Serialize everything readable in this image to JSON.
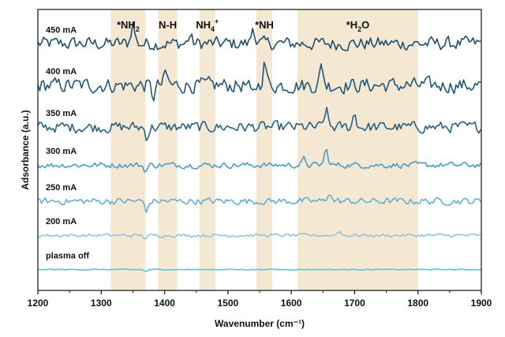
{
  "chart_data": {
    "type": "line",
    "title": "",
    "xlabel": "Wavenumber (cm⁻¹)",
    "ylabel": "Adsorbance (a.u.)",
    "xlim": [
      1200,
      1900
    ],
    "xticks": [
      1200,
      1300,
      1400,
      1500,
      1600,
      1700,
      1800,
      1900
    ],
    "y_ticks_shown": false,
    "bands": [
      {
        "label": "*NH",
        "sub": "2",
        "sup": "",
        "tail": "",
        "x_range": [
          1315,
          1370
        ]
      },
      {
        "label": "N-H",
        "sub": "",
        "sup": "",
        "tail": "",
        "x_range": [
          1390,
          1420
        ]
      },
      {
        "label": "NH",
        "sub": "4",
        "sup": "+",
        "tail": "",
        "x_range": [
          1455,
          1480
        ]
      },
      {
        "label": "*NH",
        "sub": "",
        "sup": "",
        "tail": "",
        "x_range": [
          1545,
          1570
        ]
      },
      {
        "label": "*H",
        "sub": "2",
        "sup": "",
        "tail": "O",
        "x_range": [
          1610,
          1800
        ]
      }
    ],
    "band_color": "#f5e8d3",
    "series": [
      {
        "name": "450 mA",
        "color": "#1f4e6e",
        "offset": 7.0,
        "noise": 0.16,
        "peaks": [
          {
            "x": 1350,
            "h": 0.55
          },
          {
            "x": 1540,
            "h": 0.45
          },
          {
            "x": 1440,
            "h": 0.2
          }
        ]
      },
      {
        "name": "400 mA",
        "color": "#22577a",
        "offset": 5.9,
        "noise": 0.18,
        "peaks": [
          {
            "x": 1558,
            "h": 0.6
          },
          {
            "x": 1648,
            "h": 0.5
          },
          {
            "x": 1402,
            "h": 0.3
          },
          {
            "x": 1382,
            "h": -0.3
          },
          {
            "x": 1538,
            "h": -0.3
          }
        ]
      },
      {
        "name": "350 mA",
        "color": "#285f82",
        "offset": 4.8,
        "noise": 0.13,
        "peaks": [
          {
            "x": 1655,
            "h": 0.45
          },
          {
            "x": 1700,
            "h": 0.35
          },
          {
            "x": 1372,
            "h": -0.25
          }
        ]
      },
      {
        "name": "300 mA",
        "color": "#4a9cc6",
        "offset": 3.8,
        "noise": 0.07,
        "peaks": [
          {
            "x": 1655,
            "h": 0.4
          },
          {
            "x": 1620,
            "h": 0.15
          },
          {
            "x": 1370,
            "h": -0.15
          }
        ]
      },
      {
        "name": "250 mA",
        "color": "#63aed3",
        "offset": 2.85,
        "noise": 0.08,
        "peaks": [
          {
            "x": 1372,
            "h": -0.25
          },
          {
            "x": 1660,
            "h": 0.25
          }
        ]
      },
      {
        "name": "200 mA",
        "color": "#8ec6e2",
        "offset": 1.95,
        "noise": 0.04,
        "peaks": [
          {
            "x": 1675,
            "h": 0.12
          },
          {
            "x": 1370,
            "h": -0.08
          }
        ]
      },
      {
        "name": "plasma off",
        "color": "#4cc9e6",
        "offset": 1.05,
        "noise": 0.01,
        "peaks": [
          {
            "x": 1370,
            "h": -0.05
          }
        ]
      }
    ],
    "legend": "labels above each trace, left side",
    "grid": false
  }
}
